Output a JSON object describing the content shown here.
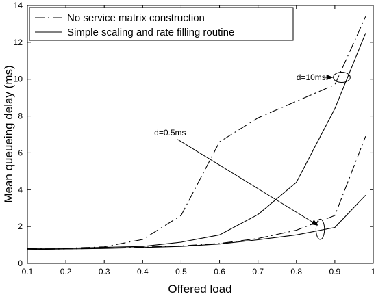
{
  "chart_data": {
    "type": "line",
    "title": "",
    "xlabel": "Offered load",
    "ylabel": "Mean queueing delay (ms)",
    "xlim": [
      0.1,
      1
    ],
    "ylim": [
      0,
      14
    ],
    "xticks": [
      0.1,
      0.2,
      0.3,
      0.4,
      0.5,
      0.6,
      0.7,
      0.8,
      0.9,
      1
    ],
    "xtick_labels": [
      "0.1",
      "0.2",
      "0.3",
      "0.4",
      "0.5",
      "0.6",
      "0.7",
      "0.8",
      "0.9",
      "1"
    ],
    "yticks": [
      0,
      2,
      4,
      6,
      8,
      10,
      12,
      14
    ],
    "ytick_labels": [
      "0",
      "2",
      "4",
      "6",
      "8",
      "10",
      "12",
      "14"
    ],
    "grid": false,
    "legend_position": "top-left",
    "legend": [
      {
        "label": "No service matrix construction",
        "style": "dashdot"
      },
      {
        "label": "Simple scaling and rate filling routine",
        "style": "solid"
      }
    ],
    "series": [
      {
        "label": "No service matrix construction, d=10ms",
        "style": "dashdot",
        "x": [
          0.1,
          0.2,
          0.3,
          0.4,
          0.5,
          0.6,
          0.7,
          0.8,
          0.9,
          0.98
        ],
        "y": [
          0.8,
          0.82,
          0.9,
          1.3,
          2.6,
          6.6,
          7.9,
          8.8,
          9.7,
          13.4
        ]
      },
      {
        "label": "Simple scaling and rate filling routine, d=10ms",
        "style": "solid",
        "x": [
          0.1,
          0.2,
          0.3,
          0.4,
          0.5,
          0.6,
          0.7,
          0.8,
          0.9,
          0.98
        ],
        "y": [
          0.8,
          0.82,
          0.87,
          0.92,
          1.15,
          1.55,
          2.65,
          4.4,
          8.4,
          12.5
        ]
      },
      {
        "label": "No service matrix construction, d=0.5ms",
        "style": "dashdot",
        "x": [
          0.1,
          0.2,
          0.3,
          0.4,
          0.5,
          0.6,
          0.7,
          0.8,
          0.9,
          0.98
        ],
        "y": [
          0.75,
          0.78,
          0.82,
          0.88,
          0.95,
          1.08,
          1.35,
          1.8,
          2.6,
          6.9
        ]
      },
      {
        "label": "Simple scaling and rate filling routine, d=0.5ms",
        "style": "solid",
        "x": [
          0.1,
          0.2,
          0.3,
          0.4,
          0.5,
          0.6,
          0.7,
          0.8,
          0.9,
          0.98
        ],
        "y": [
          0.75,
          0.78,
          0.81,
          0.86,
          0.92,
          1.05,
          1.28,
          1.55,
          1.95,
          3.7
        ]
      }
    ],
    "annotations": [
      {
        "text": "d=10ms",
        "text_x": 0.8,
        "text_y": 10.1,
        "ellipse_center": [
          0.918,
          10.1
        ],
        "ellipse_rx": 0.022,
        "ellipse_ry": 0.28
      },
      {
        "text": "d=0.5ms",
        "text_x": 0.43,
        "text_y": 7.1,
        "ellipse_center": [
          0.862,
          1.85
        ],
        "ellipse_rx": 0.011,
        "ellipse_ry": 0.55
      }
    ]
  }
}
